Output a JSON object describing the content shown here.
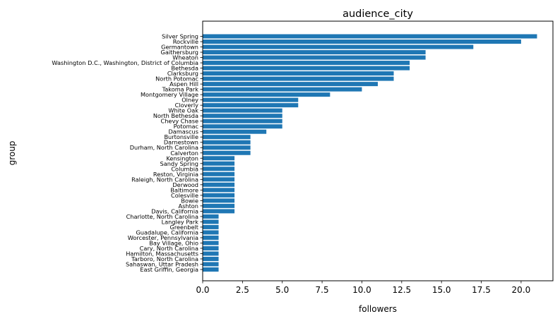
{
  "chart_data": {
    "type": "bar",
    "orientation": "horizontal",
    "title": "audience_city",
    "xlabel": "followers",
    "ylabel": "group",
    "xlim": [
      0,
      22
    ],
    "x_ticks": [
      "0.0",
      "2.5",
      "5.0",
      "7.5",
      "10.0",
      "12.5",
      "15.0",
      "17.5",
      "20.0"
    ],
    "x_tick_values": [
      0,
      2.5,
      5,
      7.5,
      10,
      12.5,
      15,
      17.5,
      20
    ],
    "grid": false,
    "bar_color": "#1f77b4",
    "categories": [
      "Silver Spring",
      "Rockville",
      "Germantown",
      "Gaithersburg",
      "Wheaton",
      "Washington D.C., Washington, District of Columbia",
      "Bethesda",
      "Clarksburg",
      "North Potomac",
      "Aspen Hill",
      "Takoma Park",
      "Montgomery Village",
      "Olney",
      "Cloverly",
      "White Oak",
      "North Bethesda",
      "Chevy Chase",
      "Potomac",
      "Damascus",
      "Burtonsville",
      "Darnestown",
      "Durham, North Carolina",
      "Calverton",
      "Kensington",
      "Sandy Spring",
      "Columbia",
      "Reston, Virginia",
      "Raleigh, North Carolina",
      "Derwood",
      "Baltimore",
      "Colesville",
      "Bowie",
      "Ashton",
      "Davis, California",
      "Charlotte, North Carolina",
      "Langley Park",
      "Greenbelt",
      "Guadalupe, California",
      "Worcester, Pennsylvania",
      "Bay Village, Ohio",
      "Cary, North Carolina",
      "Hamilton, Massachusetts",
      "Tarboro, North Carolina",
      "Sahaswan, Uttar Pradesh",
      "East Griffin, Georgia"
    ],
    "values": [
      21,
      20,
      17,
      14,
      14,
      13,
      13,
      12,
      12,
      11,
      10,
      8,
      6,
      6,
      5,
      5,
      5,
      5,
      4,
      3,
      3,
      3,
      3,
      2,
      2,
      2,
      2,
      2,
      2,
      2,
      2,
      2,
      2,
      2,
      1,
      1,
      1,
      1,
      1,
      1,
      1,
      1,
      1,
      1,
      1
    ]
  }
}
